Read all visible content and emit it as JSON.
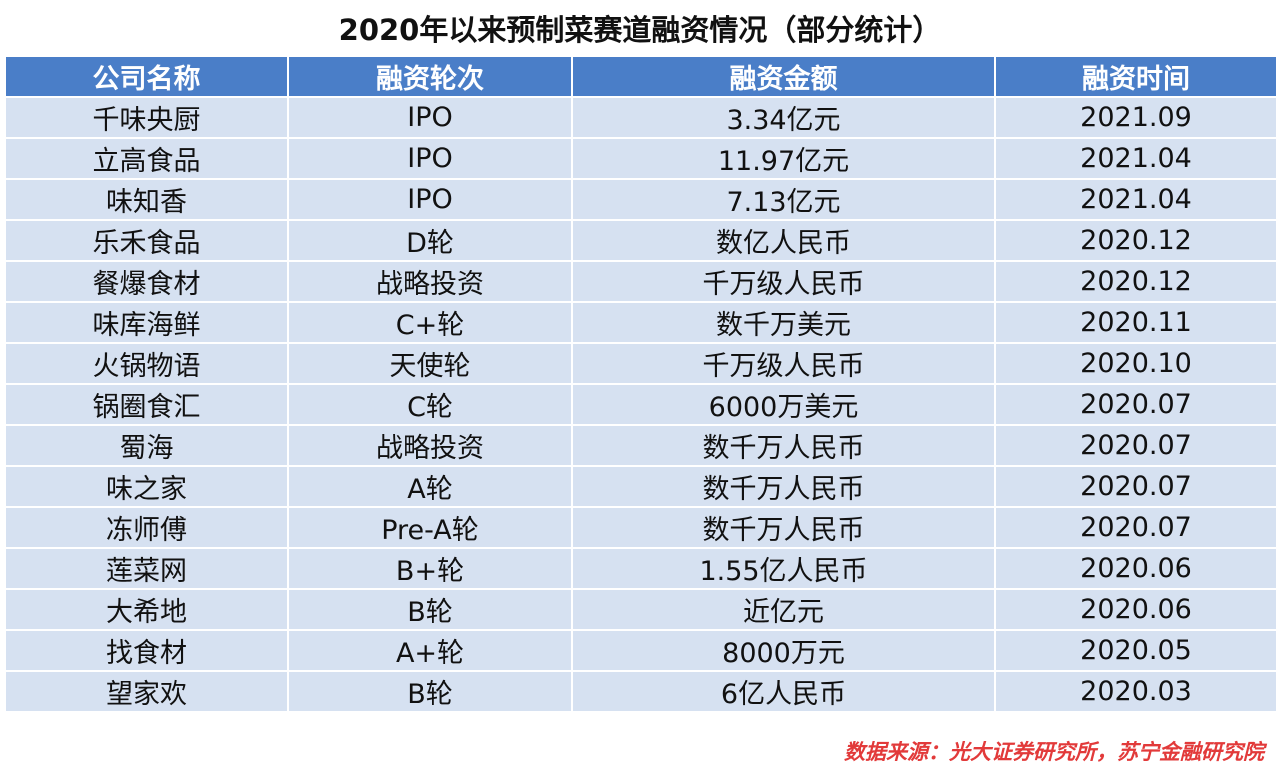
{
  "title": "2020年以来预制菜赛道融资情况（部分统计）",
  "table": {
    "headers": [
      "公司名称",
      "融资轮次",
      "融资金额",
      "融资时间"
    ],
    "rows": [
      [
        "千味央厨",
        "IPO",
        "3.34亿元",
        "2021.09"
      ],
      [
        "立高食品",
        "IPO",
        "11.97亿元",
        "2021.04"
      ],
      [
        "味知香",
        "IPO",
        "7.13亿元",
        "2021.04"
      ],
      [
        "乐禾食品",
        "D轮",
        "数亿人民币",
        "2020.12"
      ],
      [
        "餐爆食材",
        "战略投资",
        "千万级人民币",
        "2020.12"
      ],
      [
        "味库海鲜",
        "C+轮",
        "数千万美元",
        "2020.11"
      ],
      [
        "火锅物语",
        "天使轮",
        "千万级人民币",
        "2020.10"
      ],
      [
        "锅圈食汇",
        "C轮",
        "6000万美元",
        "2020.07"
      ],
      [
        "蜀海",
        "战略投资",
        "数千万人民币",
        "2020.07"
      ],
      [
        "味之家",
        "A轮",
        "数千万人民币",
        "2020.07"
      ],
      [
        "冻师傅",
        "Pre-A轮",
        "数千万人民币",
        "2020.07"
      ],
      [
        "莲菜网",
        "B+轮",
        "1.55亿人民币",
        "2020.06"
      ],
      [
        "大希地",
        "B轮",
        "近亿元",
        "2020.06"
      ],
      [
        "找食材",
        "A+轮",
        "8000万元",
        "2020.05"
      ],
      [
        "望家欢",
        "B轮",
        "6亿人民币",
        "2020.03"
      ]
    ]
  },
  "source": "数据来源：光大证券研究所，苏宁金融研究院",
  "colors": {
    "header_bg": "#4a7ec8",
    "row_bg": "#d6e1f1",
    "source_text": "#e23a3a"
  }
}
